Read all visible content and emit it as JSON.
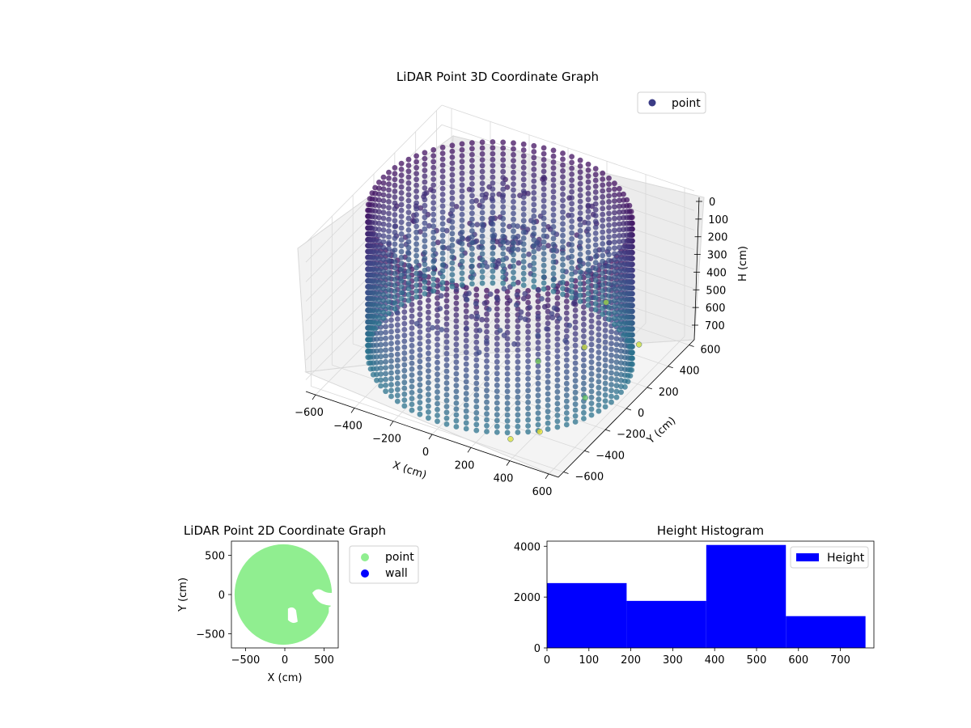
{
  "chart_data": [
    {
      "type": "scatter",
      "projection": "3d",
      "title": "LiDAR Point 3D Coordinate Graph",
      "xlabel": "X (cm)",
      "ylabel": "Y (cm)",
      "zlabel": "H (cm)",
      "x_ticks": [
        "−600",
        "−400",
        "−200",
        "0",
        "200",
        "400",
        "600"
      ],
      "y_ticks": [
        "−600",
        "−400",
        "−200",
        "0",
        "200",
        "400",
        "600"
      ],
      "z_ticks": [
        "0",
        "100",
        "200",
        "300",
        "400",
        "500",
        "600",
        "700"
      ],
      "xlim": [
        -650,
        650
      ],
      "ylim": [
        -650,
        650
      ],
      "zlim": [
        0,
        760
      ],
      "z_inverted": true,
      "colormap": "viridis",
      "legend": {
        "entries": [
          "point"
        ],
        "placement": "top-right",
        "marker_color": "#3b3c86"
      },
      "structure": {
        "shape": "cylindrical wall of points with interior scatter",
        "wall_radius": 600,
        "wall_height_range": [
          0,
          720
        ]
      },
      "outlier_points": [
        {
          "x": 250,
          "y": 550,
          "h": 650
        },
        {
          "x": 500,
          "y": 400,
          "h": 700
        },
        {
          "x": 300,
          "y": 250,
          "h": 700
        },
        {
          "x": 250,
          "y": -100,
          "h": 600
        },
        {
          "x": 420,
          "y": -400,
          "h": 740
        },
        {
          "x": 350,
          "y": -550,
          "h": 720
        },
        {
          "x": 600,
          "y": -300,
          "h": 560
        }
      ]
    },
    {
      "type": "scatter",
      "title": "LiDAR Point 2D Coordinate Graph",
      "xlabel": "X (cm)",
      "ylabel": "Y (cm)",
      "x_ticks": [
        "−500",
        "0",
        "500"
      ],
      "y_ticks": [
        "−500",
        "0",
        "500"
      ],
      "xlim": [
        -680,
        680
      ],
      "ylim": [
        -680,
        680
      ],
      "series": [
        {
          "name": "point",
          "color": "#90ee90",
          "shape": "filled disc of radius ~620 cm with small white gaps near center-right"
        },
        {
          "name": "wall",
          "color": "#0000ff",
          "points": []
        }
      ],
      "legend": {
        "placement": "outside-right"
      }
    },
    {
      "type": "bar",
      "title": "Height Histogram",
      "xlabel": "",
      "ylabel": "",
      "x_ticks": [
        "0",
        "100",
        "200",
        "300",
        "400",
        "500",
        "600",
        "700"
      ],
      "y_ticks": [
        "0",
        "2000",
        "4000"
      ],
      "xlim": [
        0,
        780
      ],
      "ylim": [
        0,
        4200
      ],
      "bin_edges": [
        0,
        190,
        380,
        570,
        760
      ],
      "values": [
        2550,
        1850,
        4050,
        1250
      ],
      "series": [
        {
          "name": "Height",
          "color": "#0000ff"
        }
      ],
      "legend": {
        "placement": "top-right"
      }
    }
  ]
}
